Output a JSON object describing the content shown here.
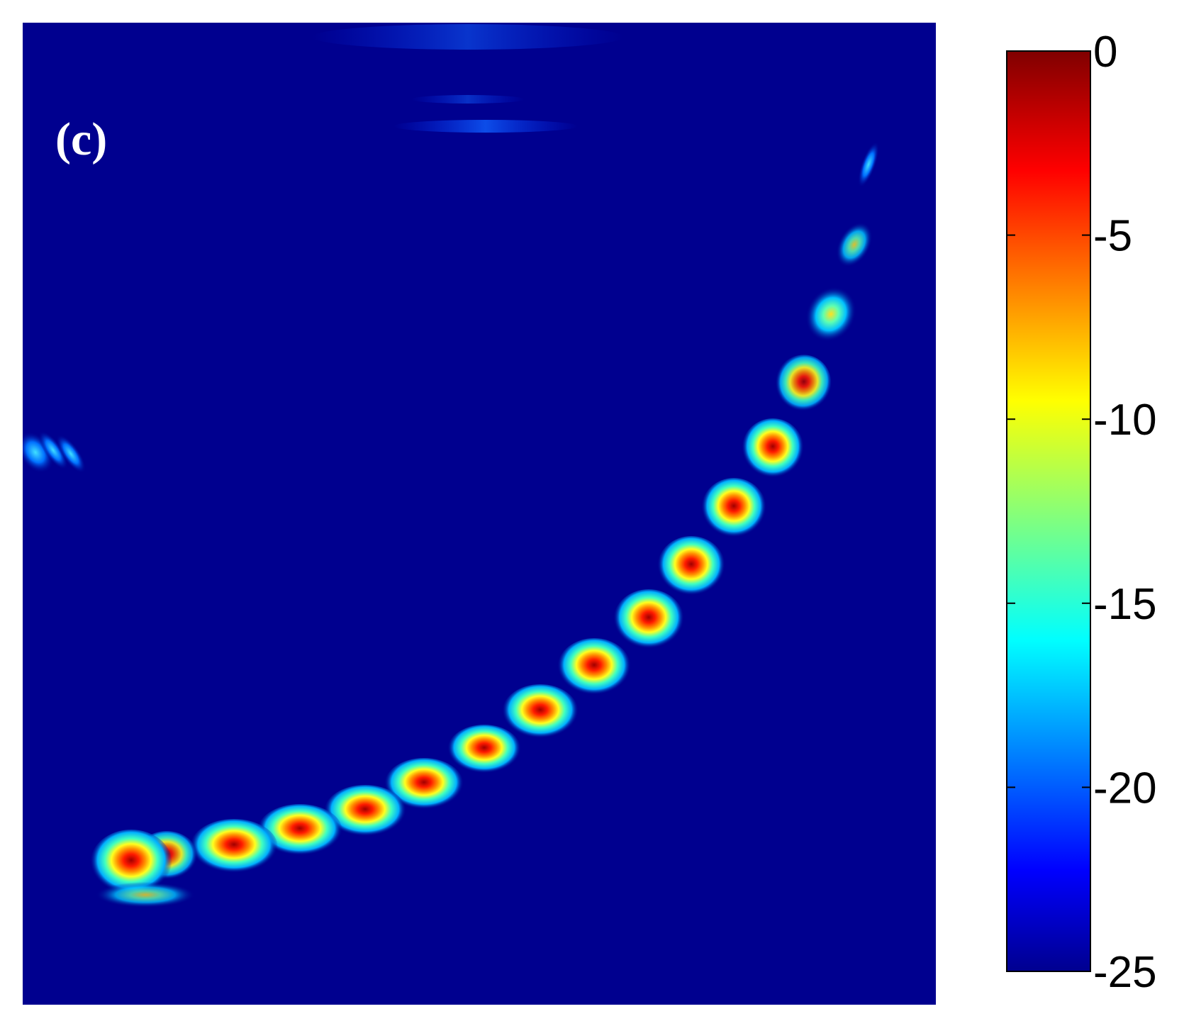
{
  "panel_label": "(c)",
  "chart_data": {
    "type": "heatmap",
    "title": "",
    "xlabel": "",
    "ylabel": "",
    "colormap": "jet",
    "background_color": "#00008f",
    "colorbar": {
      "min": -25,
      "max": 0,
      "ticks": [
        0,
        -5,
        -10,
        -15,
        -20,
        -25
      ],
      "tick_labels": [
        "0",
        "-5",
        "-10",
        "-15",
        "-20",
        "-25"
      ]
    },
    "grid": false
  }
}
